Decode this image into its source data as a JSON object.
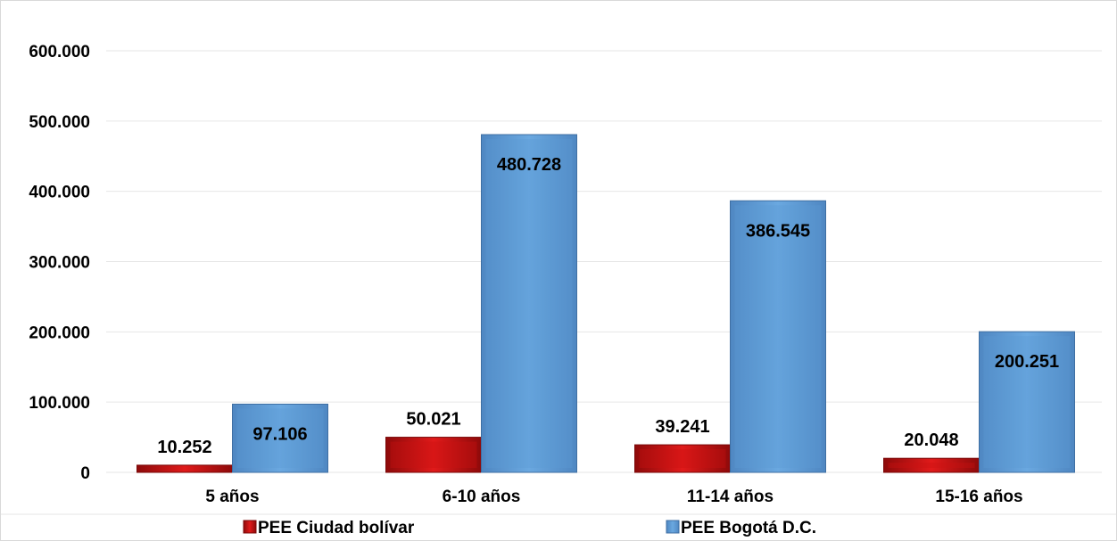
{
  "chart_data": {
    "type": "bar",
    "categories": [
      "5 años",
      "6-10 años",
      "11-14 años",
      "15-16 años"
    ],
    "series": [
      {
        "name": "PEE Ciudad bolívar",
        "values": [
          10252,
          50021,
          39241,
          20048
        ],
        "labels": [
          "10.252",
          "50.021",
          "39.241",
          "20.048"
        ],
        "color": "#cc1111"
      },
      {
        "name": "PEE Bogotá D.C.",
        "values": [
          97106,
          480728,
          386545,
          200251
        ],
        "labels": [
          "97.106",
          "480.728",
          "386.545",
          "200.251"
        ],
        "color": "#5b9bd5"
      }
    ],
    "ylim": [
      0,
      600000
    ],
    "yticks": [
      0,
      100000,
      200000,
      300000,
      400000,
      500000,
      600000
    ],
    "ytick_labels": [
      "0",
      "100.000",
      "200.000",
      "300.000",
      "400.000",
      "500.000",
      "600.000"
    ],
    "grid": true,
    "legend_position": "bottom",
    "title": "",
    "xlabel": "",
    "ylabel": ""
  }
}
